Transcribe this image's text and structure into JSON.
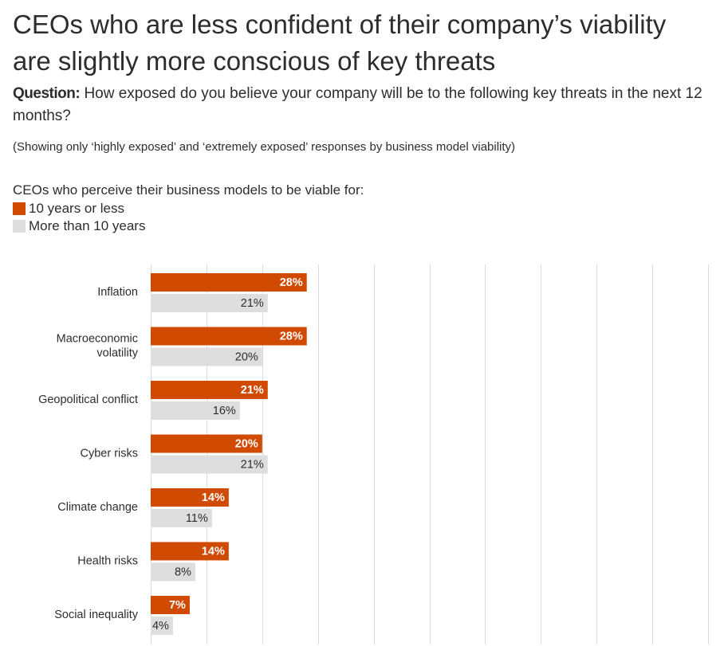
{
  "title_line1": "CEOs who are less confident of their company’s viability",
  "title_line2": "are slightly more conscious of key threats",
  "question_label": "Question:",
  "question_text": "How exposed do you believe your company will be to the following key threats in the next 12 months?",
  "note": "(Showing only ‘highly exposed’ and ‘extremely exposed’ responses by business model viability)",
  "legend": {
    "title": "CEOs who perceive their business models to be viable for:",
    "items": [
      {
        "label": "10 years or less",
        "color": "#d04a02"
      },
      {
        "label": "More than 10 years",
        "color": "#dedede"
      }
    ]
  },
  "chart_data": {
    "type": "bar",
    "orientation": "horizontal",
    "title": "CEOs who are less confident of their company’s viability are slightly more conscious of key threats",
    "categories": [
      [
        "Inflation"
      ],
      [
        "Macroeconomic",
        "volatility"
      ],
      [
        "Geopolitical conflict"
      ],
      [
        "Cyber risks"
      ],
      [
        "Climate change"
      ],
      [
        "Health risks"
      ],
      [
        "Social inequality"
      ]
    ],
    "series": [
      {
        "name": "10 years or less",
        "color": "#d04a02",
        "label_color": "#ffffff",
        "values": [
          28,
          28,
          21,
          20,
          14,
          14,
          7
        ]
      },
      {
        "name": "More than 10 years",
        "color": "#dedede",
        "label_color": "#2d2d2d",
        "values": [
          21,
          20,
          16,
          21,
          11,
          8,
          4
        ]
      }
    ],
    "value_suffix": "%",
    "xlim": [
      0,
      100
    ],
    "gridlines": [
      0,
      10,
      20,
      30,
      40,
      50,
      60,
      70,
      80,
      90,
      100
    ],
    "grid": true
  }
}
